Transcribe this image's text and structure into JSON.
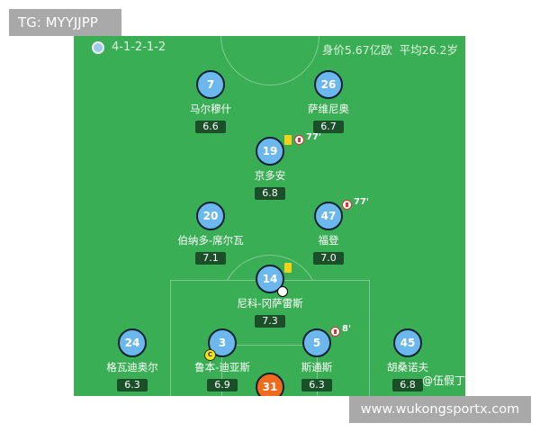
{
  "overlay_top_left": "TG: MYYJJPP",
  "overlay_bottom_right": "www.wukongsportx.com",
  "header": {
    "formation": "4-1-2-1-2",
    "team_crest_icon": "manchester-city-crest",
    "value": "身价5.67亿欧",
    "avg_age": "平均26.2岁"
  },
  "colors": {
    "pitch": "#3aae55",
    "player": "#6cb8ee",
    "goalkeeper": "#f26a1b",
    "rating_bg": "#1b4f2a"
  },
  "players": [
    {
      "number": "7",
      "name": "马尔穆什",
      "rating": "6.6"
    },
    {
      "number": "26",
      "name": "萨维尼奥",
      "rating": "6.7"
    },
    {
      "number": "19",
      "name": "京多安",
      "rating": "6.8",
      "yellow_card": true,
      "sub_off": "77'"
    },
    {
      "number": "20",
      "name": "伯纳多-席尔瓦",
      "rating": "7.1"
    },
    {
      "number": "47",
      "name": "福登",
      "rating": "7.0",
      "sub_off": "77'"
    },
    {
      "number": "14",
      "name": "尼科-冈萨雷斯",
      "rating": "7.3",
      "yellow_card": true,
      "goal": true
    },
    {
      "number": "24",
      "name": "格瓦迪奥尔",
      "rating": "6.3"
    },
    {
      "number": "3",
      "name": "鲁本-迪亚斯",
      "rating": "6.9",
      "captain": "C"
    },
    {
      "number": "5",
      "name": "斯通斯",
      "rating": "6.3",
      "sub_off": "8'"
    },
    {
      "number": "45",
      "name": "胡桑诺夫",
      "rating": "6.8"
    },
    {
      "number": "31"
    }
  ],
  "watermark": "@伍假丁"
}
